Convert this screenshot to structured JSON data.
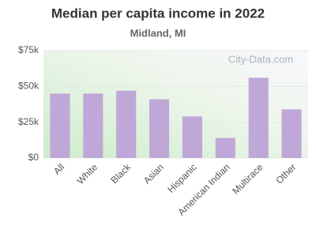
{
  "chart_data": {
    "type": "bar",
    "title": "Median per capita income in 2022",
    "subtitle": "Midland, MI",
    "watermark": "City-Data.com",
    "categories": [
      "All",
      "White",
      "Black",
      "Asian",
      "Hispanic",
      "American Indian",
      "Multirace",
      "Other"
    ],
    "values": [
      45000,
      45000,
      47000,
      41000,
      29000,
      14000,
      56000,
      34000
    ],
    "color": "#bfa8d8",
    "ylim": [
      0,
      75000
    ],
    "yticks": [
      {
        "value": 0,
        "label": "$0"
      },
      {
        "value": 25000,
        "label": "$25k"
      },
      {
        "value": 50000,
        "label": "$50k"
      },
      {
        "value": 75000,
        "label": "$75k"
      }
    ],
    "grid": true
  }
}
